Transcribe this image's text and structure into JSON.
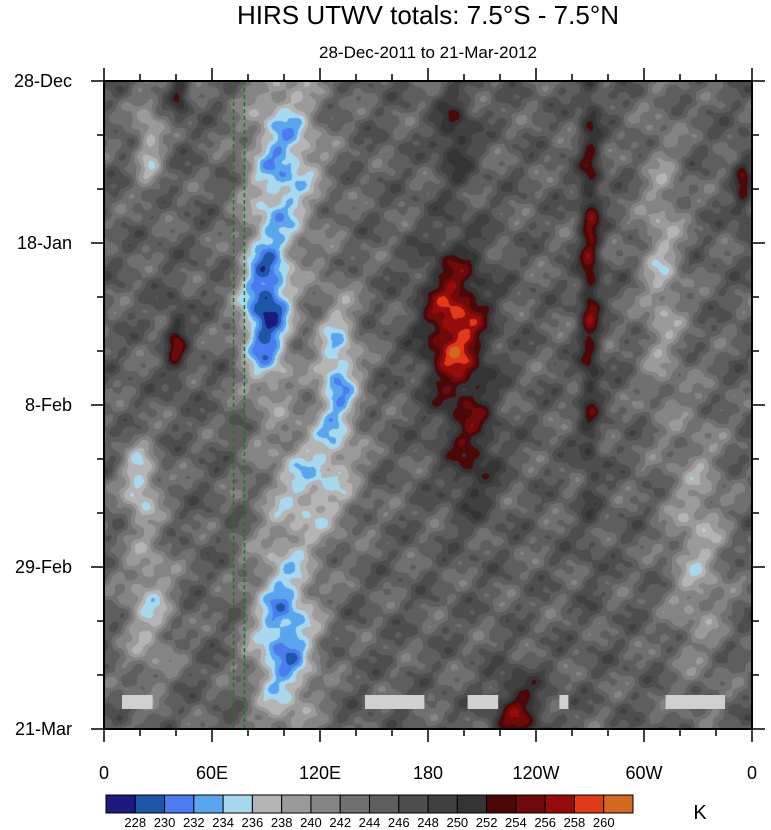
{
  "chart_data": {
    "type": "heatmap",
    "title": "HIRS UTWV totals: 7.5°S - 7.5°N",
    "subtitle": "28-Dec-2011 to 21-Mar-2012",
    "units": "K",
    "x_ticks": [
      "0",
      "60E",
      "120E",
      "180",
      "120W",
      "60W",
      "0"
    ],
    "x_tick_values": [
      0,
      60,
      120,
      180,
      240,
      300,
      360
    ],
    "y_ticks": [
      "28-Dec",
      "18-Jan",
      "8-Feb",
      "29-Feb",
      "21-Mar"
    ],
    "y_tick_values": [
      0,
      21,
      42,
      63,
      84
    ],
    "xlim": [
      0,
      360
    ],
    "ylim": [
      0,
      84
    ],
    "reference_lines_lon": [
      72,
      78
    ],
    "levels": [
      228,
      230,
      232,
      234,
      236,
      238,
      240,
      242,
      244,
      246,
      248,
      250,
      252,
      254,
      256,
      258,
      260
    ],
    "level_labels": [
      "228",
      "230",
      "232",
      "234",
      "236",
      "238",
      "240",
      "242",
      "244",
      "246",
      "248",
      "250",
      "252",
      "254",
      "256",
      "258",
      "260"
    ],
    "colors": [
      "#1a1a80",
      "#1f57a8",
      "#4a7cf0",
      "#5aa6ee",
      "#a8d8ee",
      "#b4b4b4",
      "#9a9a9a",
      "#848484",
      "#707070",
      "#5e5e5e",
      "#4e4e4e",
      "#404040",
      "#343434",
      "#4a0808",
      "#6e0a0a",
      "#960c0c",
      "#e03a18",
      "#d2691e"
    ],
    "missing_color": "#d0d0d0",
    "features": [
      {
        "kind": "cold",
        "lon": 25,
        "day": 8,
        "slon": 8,
        "sday": 6,
        "amp": 8
      },
      {
        "kind": "cold",
        "lon": 100,
        "day": 10,
        "slon": 20,
        "sday": 12,
        "amp": 12
      },
      {
        "kind": "cold",
        "lon": 90,
        "day": 30,
        "slon": 14,
        "sday": 10,
        "amp": 17
      },
      {
        "kind": "cold",
        "lon": 130,
        "day": 38,
        "slon": 12,
        "sday": 10,
        "amp": 12
      },
      {
        "kind": "cold",
        "lon": 115,
        "day": 52,
        "slon": 24,
        "sday": 8,
        "amp": 9
      },
      {
        "kind": "cold",
        "lon": 20,
        "day": 52,
        "slon": 10,
        "sday": 5,
        "amp": 10
      },
      {
        "kind": "cold",
        "lon": 100,
        "day": 72,
        "slon": 18,
        "sday": 12,
        "amp": 14
      },
      {
        "kind": "cold",
        "lon": 25,
        "day": 68,
        "slon": 14,
        "sday": 10,
        "amp": 8
      },
      {
        "kind": "cold",
        "lon": 310,
        "day": 24,
        "slon": 12,
        "sday": 18,
        "amp": 7
      },
      {
        "kind": "cold",
        "lon": 330,
        "day": 60,
        "slon": 16,
        "sday": 16,
        "amp": 7
      },
      {
        "kind": "warm",
        "lon": 195,
        "day": 32,
        "slon": 18,
        "sday": 10,
        "amp": 14
      },
      {
        "kind": "warm",
        "lon": 205,
        "day": 48,
        "slon": 14,
        "sday": 8,
        "amp": 7
      },
      {
        "kind": "warm",
        "lon": 270,
        "day": 24,
        "slon": 6,
        "sday": 28,
        "amp": 9
      },
      {
        "kind": "warm",
        "lon": 195,
        "day": 7,
        "slon": 10,
        "sday": 6,
        "amp": 7
      },
      {
        "kind": "warm",
        "lon": 230,
        "day": 82,
        "slon": 14,
        "sday": 5,
        "amp": 9
      },
      {
        "kind": "warm",
        "lon": 40,
        "day": 34,
        "slon": 6,
        "sday": 5,
        "amp": 8
      },
      {
        "kind": "warm",
        "lon": 42,
        "day": 2,
        "slon": 5,
        "sday": 3,
        "amp": 7
      },
      {
        "kind": "warm",
        "lon": 355,
        "day": 14,
        "slon": 5,
        "sday": 5,
        "amp": 7
      }
    ],
    "missing_segments": [
      {
        "lon_start": 10,
        "lon_end": 27,
        "day": 80.5
      },
      {
        "lon_start": 145,
        "lon_end": 178,
        "day": 80.5
      },
      {
        "lon_start": 202,
        "lon_end": 219,
        "day": 80.5
      },
      {
        "lon_start": 253,
        "lon_end": 258,
        "day": 80.5
      },
      {
        "lon_start": 312,
        "lon_end": 345,
        "day": 80.5
      }
    ]
  }
}
